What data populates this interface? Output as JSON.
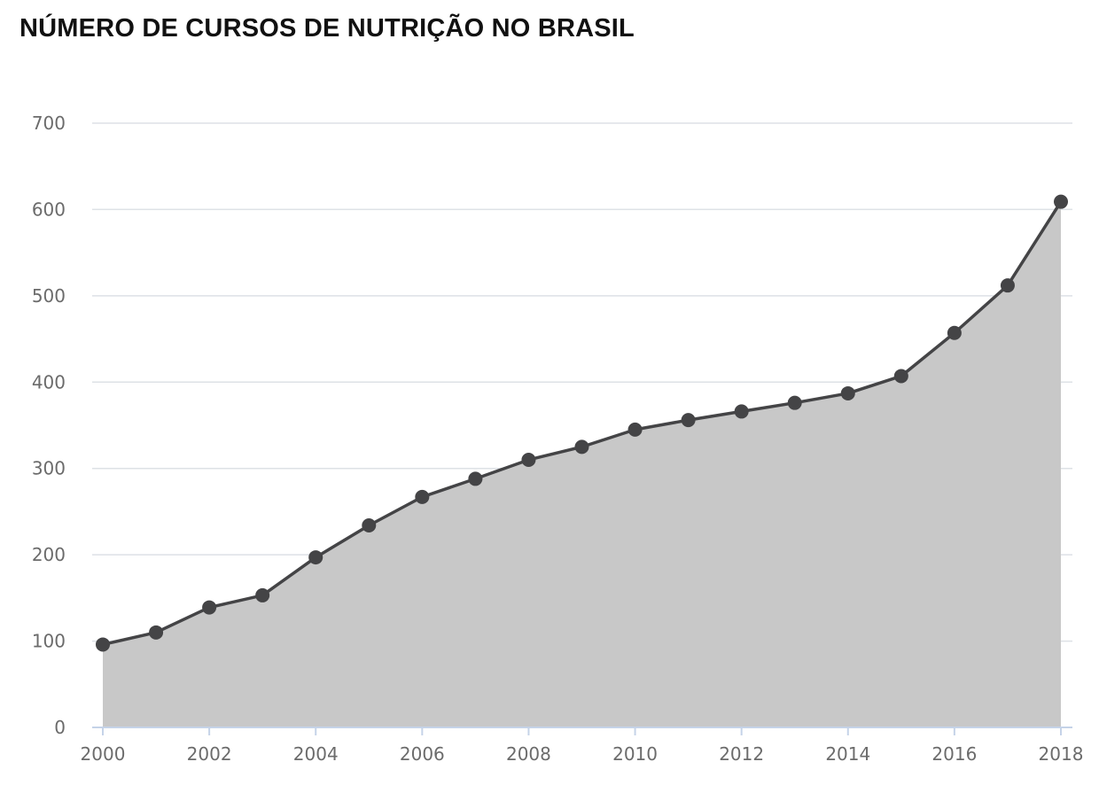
{
  "chart_data": {
    "type": "area",
    "title": "NÚMERO DE CURSOS DE NUTRIÇÃO NO BRASIL",
    "xlabel": "",
    "ylabel": "",
    "x": [
      2000,
      2001,
      2002,
      2003,
      2004,
      2005,
      2006,
      2007,
      2008,
      2009,
      2010,
      2011,
      2012,
      2013,
      2014,
      2015,
      2016,
      2017,
      2018
    ],
    "values": [
      96,
      110,
      139,
      153,
      197,
      234,
      267,
      288,
      310,
      325,
      345,
      356,
      366,
      376,
      387,
      407,
      457,
      512,
      609
    ],
    "xlim": [
      2000,
      2018
    ],
    "ylim": [
      0,
      700
    ],
    "xticks": [
      "2000",
      "2002",
      "2004",
      "2006",
      "2008",
      "2010",
      "2012",
      "2014",
      "2016",
      "2018"
    ],
    "yticks": [
      "0",
      "100",
      "200",
      "300",
      "400",
      "500",
      "600",
      "700"
    ],
    "grid": true,
    "legend": "none",
    "colors": {
      "area_fill": "#c8c8c8",
      "line": "#444446",
      "marker": "#444446",
      "grid": "#dde1e6",
      "axis": "#c5d3e8",
      "tick_text": "#6b6b6b"
    }
  }
}
